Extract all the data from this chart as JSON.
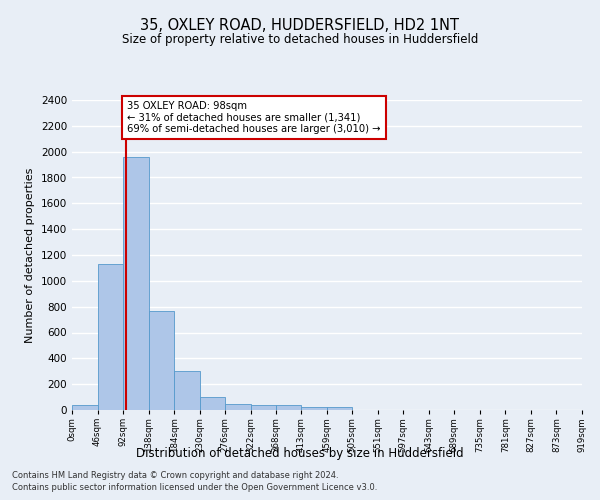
{
  "title": "35, OXLEY ROAD, HUDDERSFIELD, HD2 1NT",
  "subtitle": "Size of property relative to detached houses in Huddersfield",
  "xlabel": "Distribution of detached houses by size in Huddersfield",
  "ylabel": "Number of detached properties",
  "property_size": 98,
  "bin_edges": [
    0,
    46,
    92,
    138,
    184,
    230,
    276,
    322,
    368,
    413,
    459,
    505,
    551,
    597,
    643,
    689,
    735,
    781,
    827,
    873,
    919
  ],
  "bin_labels": [
    "0sqm",
    "46sqm",
    "92sqm",
    "138sqm",
    "184sqm",
    "230sqm",
    "276sqm",
    "322sqm",
    "368sqm",
    "413sqm",
    "459sqm",
    "505sqm",
    "551sqm",
    "597sqm",
    "643sqm",
    "689sqm",
    "735sqm",
    "781sqm",
    "827sqm",
    "873sqm",
    "919sqm"
  ],
  "counts": [
    35,
    1130,
    1960,
    770,
    300,
    100,
    50,
    40,
    35,
    20,
    20,
    0,
    0,
    0,
    0,
    0,
    0,
    0,
    0,
    0
  ],
  "bar_color": "#aec6e8",
  "bar_edge_color": "#5599cc",
  "vline_color": "#cc0000",
  "vline_x": 98,
  "ylim": [
    0,
    2400
  ],
  "yticks": [
    0,
    200,
    400,
    600,
    800,
    1000,
    1200,
    1400,
    1600,
    1800,
    2000,
    2200,
    2400
  ],
  "annotation_text": "35 OXLEY ROAD: 98sqm\n← 31% of detached houses are smaller (1,341)\n69% of semi-detached houses are larger (3,010) →",
  "annotation_box_color": "#ffffff",
  "annotation_box_edge_color": "#cc0000",
  "background_color": "#e8eef6",
  "grid_color": "#ffffff",
  "footer_line1": "Contains HM Land Registry data © Crown copyright and database right 2024.",
  "footer_line2": "Contains public sector information licensed under the Open Government Licence v3.0."
}
